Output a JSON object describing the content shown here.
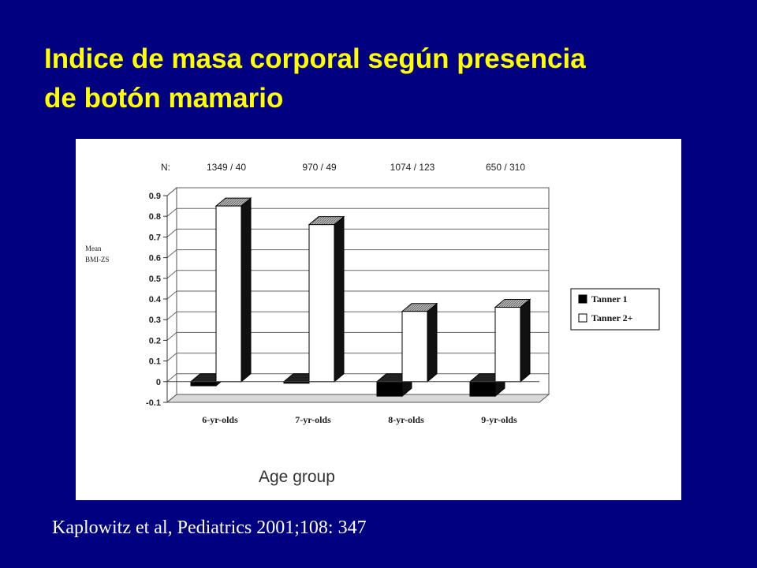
{
  "slide": {
    "title_line1": "Indice de masa corporal según presencia",
    "title_line2": "de botón mamario",
    "citation": "Kaplowitz et al, Pediatrics 2001;108: 347"
  },
  "chart_data": {
    "type": "bar",
    "title": "",
    "xlabel": "Age group",
    "ylabel_line1": "Mean",
    "ylabel_line2": "BMI-ZS",
    "n_label": "N:",
    "categories": [
      "6-yr-olds",
      "7-yr-olds",
      "8-yr-olds",
      "9-yr-olds"
    ],
    "n_values": [
      "1349 / 40",
      "970 / 49",
      "1074 / 123",
      "650 / 310"
    ],
    "series": [
      {
        "name": "Tanner 1",
        "values": [
          -0.02,
          0.0,
          -0.07,
          -0.07
        ]
      },
      {
        "name": "Tanner 2+",
        "values": [
          0.85,
          0.76,
          0.34,
          0.36
        ]
      }
    ],
    "ylim": [
      -0.1,
      0.9
    ],
    "yticks": [
      "0.9",
      "0.8",
      "0.7",
      "0.6",
      "0.5",
      "0.4",
      "0.3",
      "0.2",
      "0.1",
      "0",
      "-0.1"
    ],
    "grid": true,
    "legend_position": "right",
    "colors": {
      "tanner1": "#000000",
      "tanner2": "#ffffff",
      "top_hatch": "#888888",
      "side": "#111111"
    }
  }
}
